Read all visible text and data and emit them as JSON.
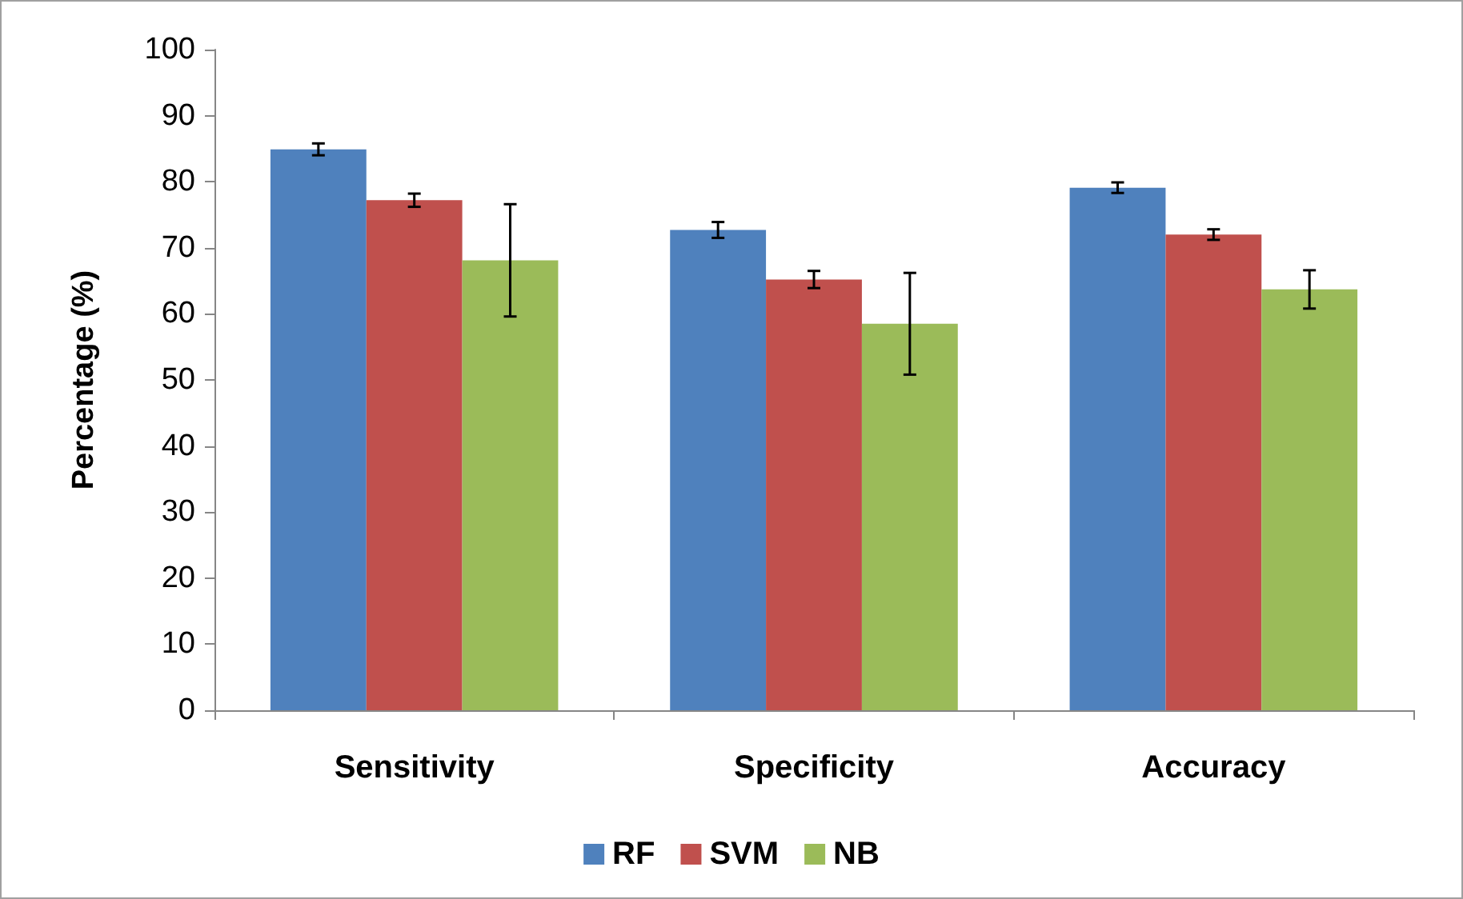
{
  "chart_data": {
    "type": "bar",
    "ylabel": "Percentage (%)",
    "categories": [
      "Sensitivity",
      "Specificity",
      "Accuracy"
    ],
    "series": [
      {
        "name": "RF",
        "color": "#4f81bd",
        "values": [
          84.9,
          72.7,
          79.1
        ],
        "errors": [
          0.9,
          1.2,
          0.8
        ]
      },
      {
        "name": "SVM",
        "color": "#c0504d",
        "values": [
          77.2,
          65.2,
          72.0
        ],
        "errors": [
          1.0,
          1.3,
          0.8
        ]
      },
      {
        "name": "NB",
        "color": "#9bbb59",
        "values": [
          68.1,
          58.5,
          63.7
        ],
        "errors": [
          8.5,
          7.7,
          2.9
        ]
      }
    ],
    "ylim": [
      0,
      100
    ],
    "yticks": [
      0,
      10,
      20,
      30,
      40,
      50,
      60,
      70,
      80,
      90,
      100
    ],
    "grid": false,
    "legend": "bottom"
  }
}
